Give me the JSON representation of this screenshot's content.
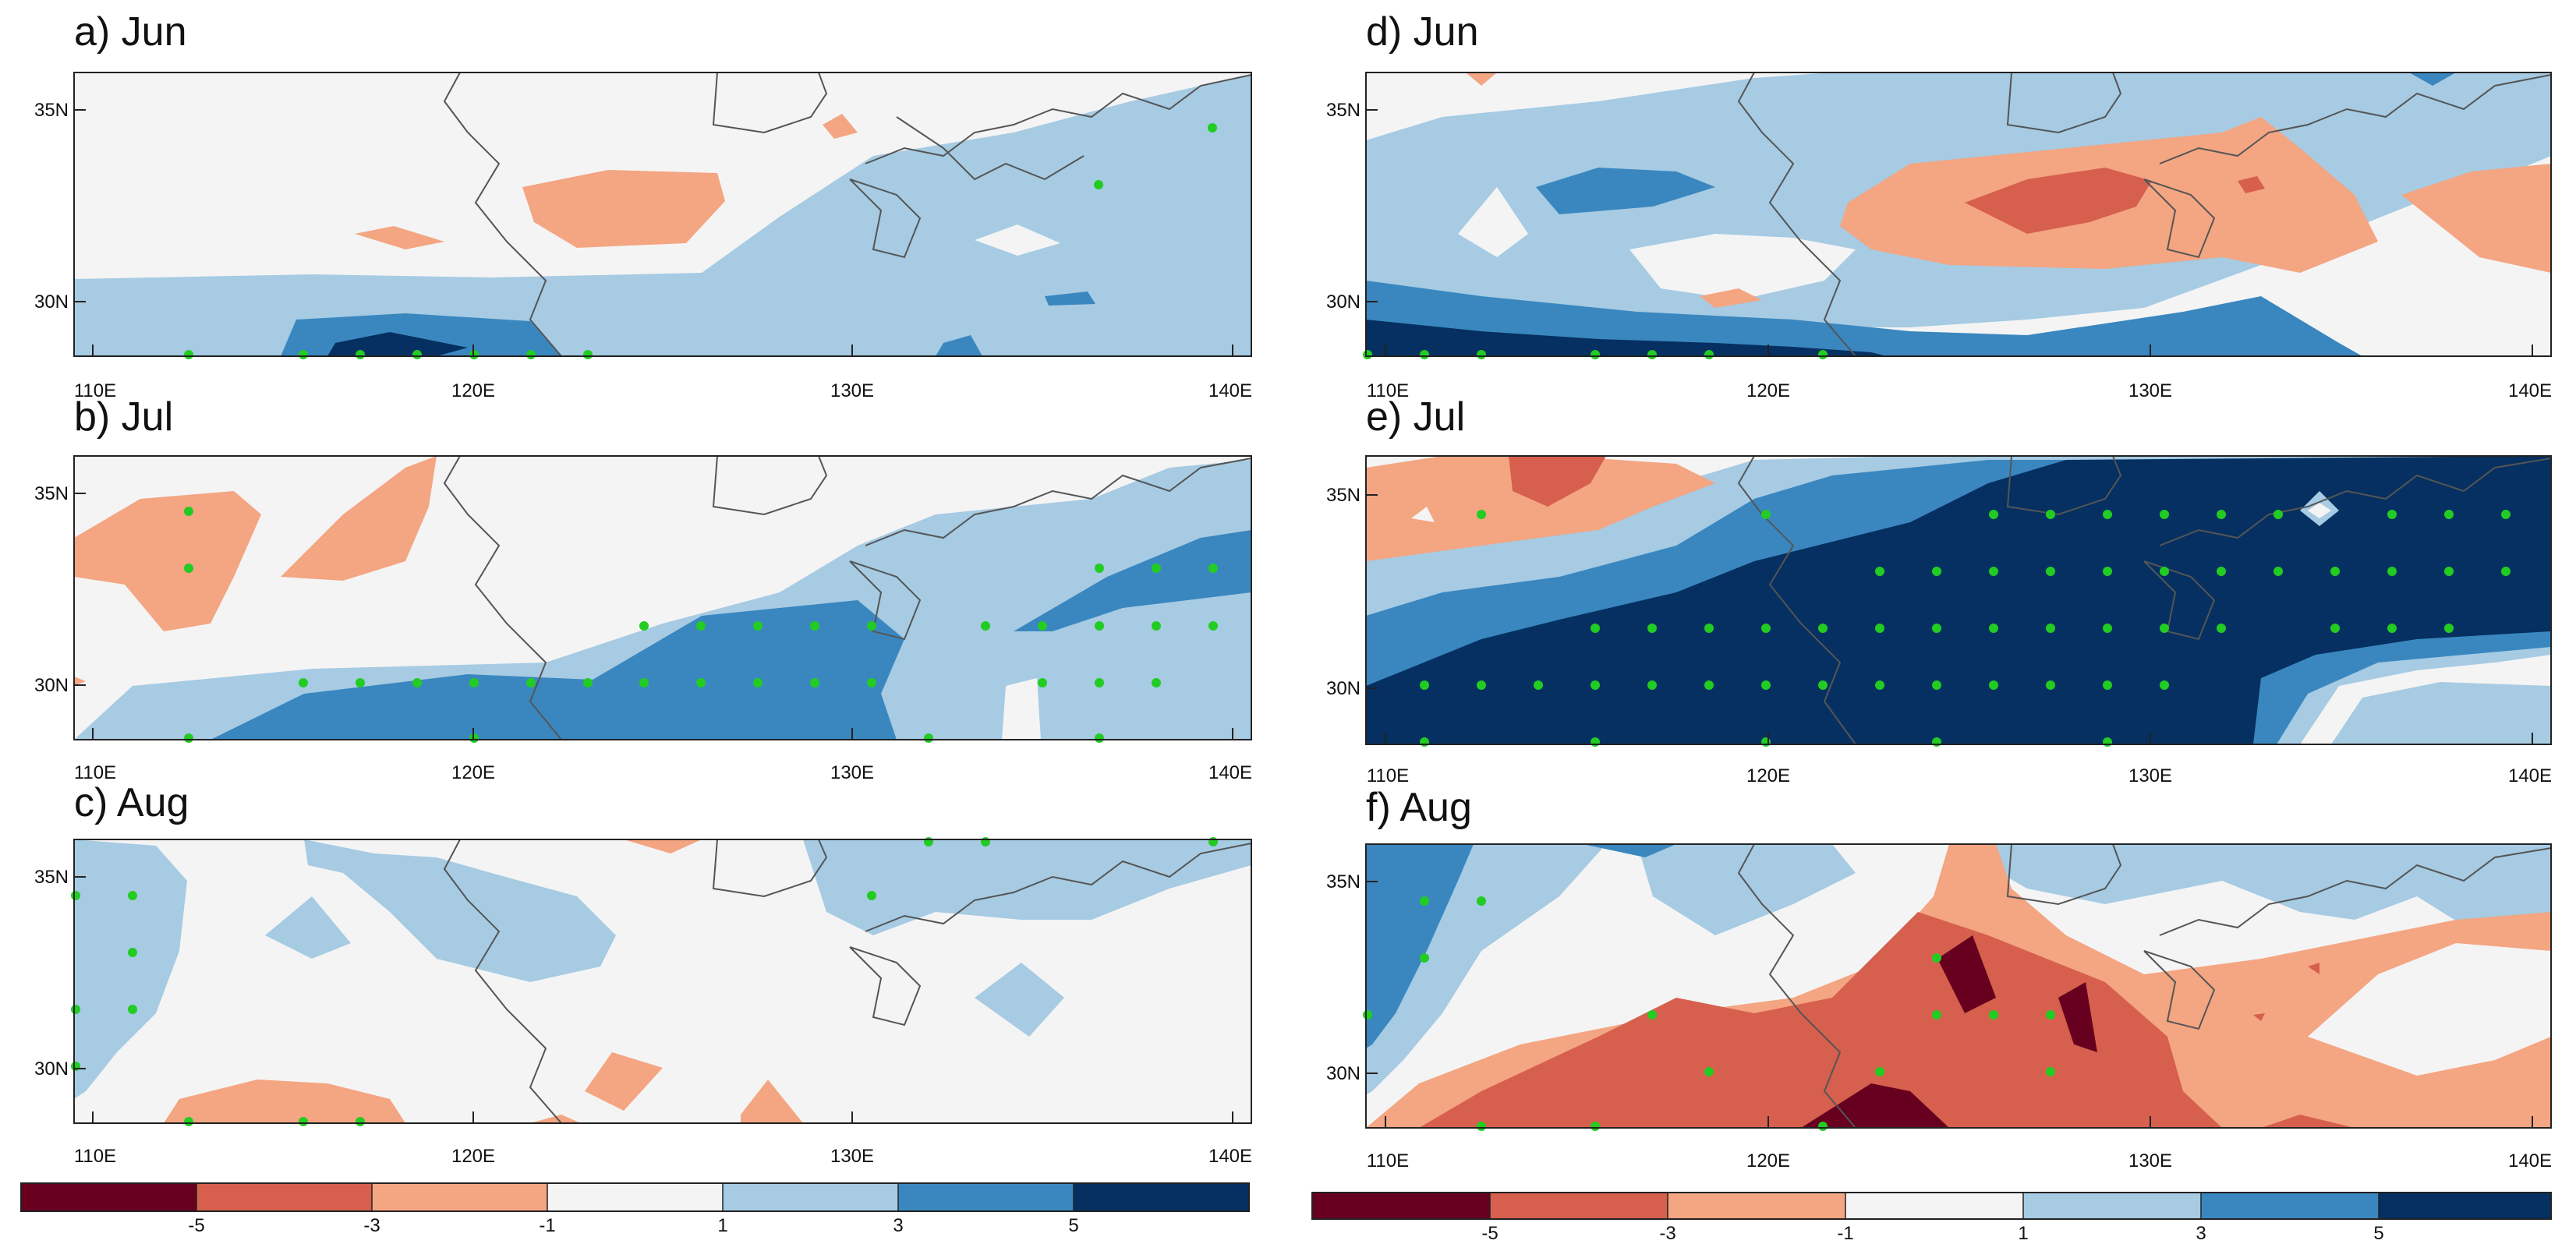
{
  "figure": {
    "panels": [
      {
        "id": "a",
        "title": "a) Jun"
      },
      {
        "id": "b",
        "title": "b) Jul"
      },
      {
        "id": "c",
        "title": "c) Aug"
      },
      {
        "id": "d",
        "title": "d) Jun"
      },
      {
        "id": "e",
        "title": "e) Jul"
      },
      {
        "id": "f",
        "title": "f) Aug"
      }
    ],
    "axis": {
      "lon_range": [
        109.5,
        140.5
      ],
      "lat_range": [
        28.5,
        36
      ],
      "lon_ticks": [
        "110E",
        "120E",
        "130E",
        "140E"
      ],
      "lat_ticks": [
        "30N",
        "35N"
      ]
    },
    "colorbar": {
      "levels": [
        "-5",
        "-3",
        "-1",
        "1",
        "3",
        "5"
      ],
      "colors": [
        "#67001f",
        "#d6604d",
        "#f4a582",
        "#f4f4f4",
        "#a6cbe3",
        "#3a87bf",
        "#053061"
      ]
    },
    "significance_marker_color": "#22cc22"
  }
}
